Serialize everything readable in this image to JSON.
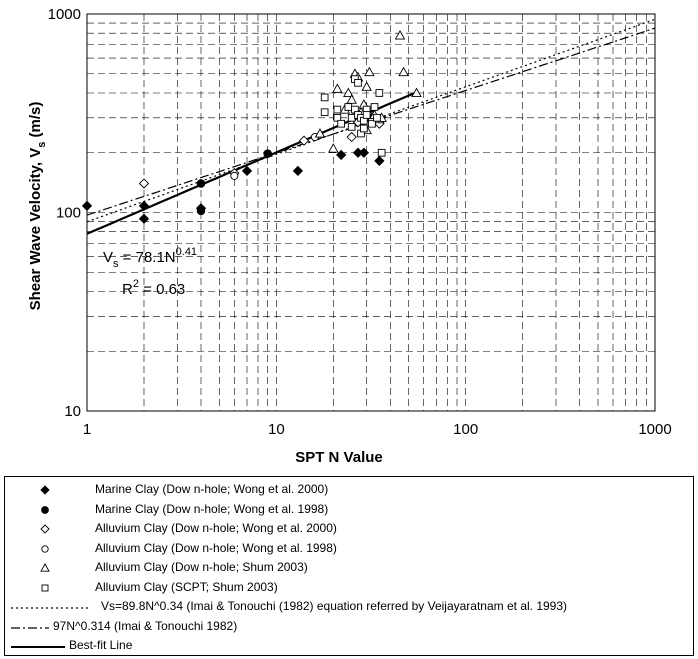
{
  "chart_data": {
    "type": "scatter",
    "title": "",
    "xlabel": "SPT N Value",
    "ylabel": "Shear Wave Velocity, V s (m/s)",
    "ylabel_parts": {
      "main": "Shear Wave Velocity, V",
      "sub": "s",
      "unit": " (m/s)"
    },
    "xscale": "log",
    "yscale": "log",
    "xlim": [
      1,
      1000
    ],
    "ylim": [
      10,
      1000
    ],
    "x_ticks": [
      "1",
      "10",
      "100",
      "1000"
    ],
    "y_ticks": [
      "10",
      "100",
      "1000"
    ],
    "grid": true,
    "annotations": {
      "equation": {
        "v": "V",
        "v_sub": "s",
        "eq": " = 78.1N",
        "exp": "0.41"
      },
      "r2": {
        "r": "R",
        "exp": "2",
        "val": " = 0.63"
      }
    },
    "legend": [
      {
        "label": "Marine Clay (Dow n-hole;  Wong et al. 2000)",
        "marker": "diamond-filled"
      },
      {
        "label": "Marine Clay (Dow n-hole;  Wong et al. 1998)",
        "marker": "circle-filled"
      },
      {
        "label": "Alluvium Clay (Dow n-hole;  Wong et al. 2000)",
        "marker": "diamond-open"
      },
      {
        "label": "Alluvium Clay (Dow n-hole;  Wong et al. 1998)",
        "marker": "circle-open"
      },
      {
        "label": "Alluvium Clay (Dow n-hole; Shum 2003)",
        "marker": "triangle-open"
      },
      {
        "label": "Alluvium Clay (SCPT; Shum 2003)",
        "marker": "square-open"
      },
      {
        "label": "Vs=89.8N^0.34 (Imai & Tonouchi (1982) equation referred by Veijayaratnam et al. 1993)",
        "marker": "dotted-line"
      },
      {
        "label": "97N^0.314 (Imai & Tonouchi 1982)",
        "marker": "dashdot-line"
      },
      {
        "label": "Best-fit Line",
        "marker": "solid-line"
      }
    ],
    "series": [
      {
        "name": "Marine Clay (Dow n-hole;  Wong et al. 2000)",
        "marker": "diamond-filled",
        "points": [
          [
            1,
            108
          ],
          [
            2,
            93
          ],
          [
            2,
            108
          ],
          [
            4,
            105
          ],
          [
            7,
            162
          ],
          [
            13,
            162
          ],
          [
            22,
            195
          ],
          [
            27,
            200
          ],
          [
            29,
            200
          ],
          [
            35,
            182
          ]
        ]
      },
      {
        "name": "Marine Clay (Dow n-hole;  Wong et al. 1998)",
        "marker": "circle-filled",
        "points": [
          [
            4,
            102
          ],
          [
            4,
            140
          ],
          [
            9,
            198
          ]
        ]
      },
      {
        "name": "Alluvium Clay (Dow n-hole;  Wong et al. 2000)",
        "marker": "diamond-open",
        "points": [
          [
            2,
            140
          ],
          [
            6,
            158
          ],
          [
            14,
            230
          ],
          [
            25,
            240
          ],
          [
            27,
            285
          ],
          [
            28,
            305
          ],
          [
            30,
            280
          ],
          [
            32,
            300
          ],
          [
            35,
            280
          ]
        ]
      },
      {
        "name": "Alluvium Clay (Dow n-hole;  Wong et al. 1998)",
        "marker": "circle-open",
        "points": [
          [
            6,
            153
          ],
          [
            16,
            240
          ]
        ]
      },
      {
        "name": "Alluvium Clay (Dow n-hole; Shum 2003)",
        "marker": "triangle-open",
        "points": [
          [
            17,
            250
          ],
          [
            20,
            210
          ],
          [
            21,
            420
          ],
          [
            23,
            330
          ],
          [
            24,
            400
          ],
          [
            25,
            370
          ],
          [
            26,
            500
          ],
          [
            26,
            310
          ],
          [
            27,
            480
          ],
          [
            28,
            320
          ],
          [
            29,
            350
          ],
          [
            30,
            260
          ],
          [
            31,
            510
          ],
          [
            32,
            300
          ],
          [
            33,
            310
          ],
          [
            35,
            295
          ],
          [
            36,
            300
          ],
          [
            45,
            780
          ],
          [
            47,
            510
          ],
          [
            55,
            400
          ],
          [
            30,
            430
          ]
        ]
      },
      {
        "name": "Alluvium Clay (SCPT; Shum 2003)",
        "marker": "square-open",
        "points": [
          [
            18,
            380
          ],
          [
            18,
            320
          ],
          [
            21,
            330
          ],
          [
            21,
            300
          ],
          [
            22,
            280
          ],
          [
            24,
            340
          ],
          [
            25,
            300
          ],
          [
            25,
            270
          ],
          [
            26,
            470
          ],
          [
            26,
            330
          ],
          [
            27,
            450
          ],
          [
            27,
            310
          ],
          [
            28,
            250
          ],
          [
            28,
            300
          ],
          [
            29,
            290
          ],
          [
            29,
            265
          ],
          [
            30,
            330
          ],
          [
            30,
            310
          ],
          [
            32,
            280
          ],
          [
            33,
            340
          ],
          [
            34,
            300
          ],
          [
            35,
            400
          ],
          [
            36,
            200
          ]
        ]
      }
    ],
    "lines": [
      {
        "name": "Vs=89.8N^0.34 (Imai & Tonouchi (1982) equation referred by Veijayaratnam et al. 1993)",
        "style": "dotted",
        "a": 89.8,
        "b": 0.34,
        "x": [
          1,
          1000
        ]
      },
      {
        "name": "97N^0.314 (Imai & Tonouchi 1982)",
        "style": "dashdot",
        "a": 97,
        "b": 0.314,
        "x": [
          1,
          1000
        ]
      },
      {
        "name": "Best-fit Line",
        "style": "solid",
        "a": 78.1,
        "b": 0.41,
        "x": [
          1,
          55
        ]
      }
    ]
  }
}
